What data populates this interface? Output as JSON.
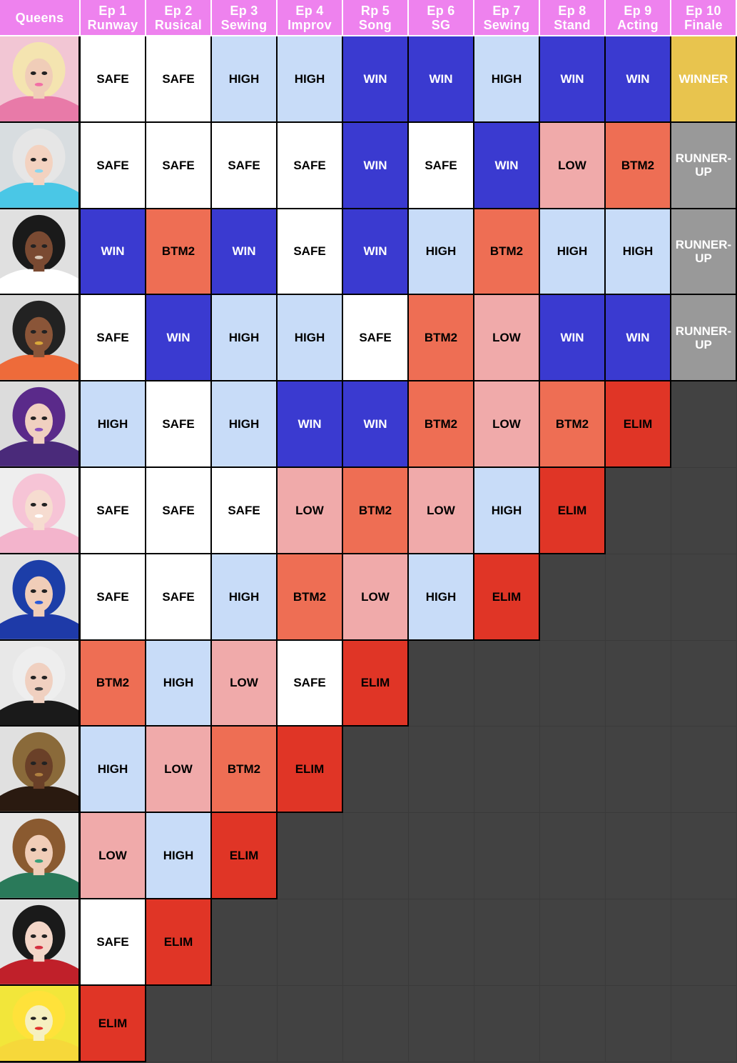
{
  "header": {
    "queens_label": "Queens",
    "episodes": [
      {
        "num": "Ep 1",
        "name": "Runway"
      },
      {
        "num": "Ep 2",
        "name": "Rusical"
      },
      {
        "num": "Ep 3",
        "name": "Sewing"
      },
      {
        "num": "Ep 4",
        "name": "Improv"
      },
      {
        "num": "Rp 5",
        "name": "Song"
      },
      {
        "num": "Ep 6",
        "name": "SG"
      },
      {
        "num": "Ep 7",
        "name": "Sewing"
      },
      {
        "num": "Ep 8",
        "name": "Stand"
      },
      {
        "num": "Ep 9",
        "name": "Acting"
      },
      {
        "num": "Ep 10",
        "name": "Finale"
      }
    ]
  },
  "colors": {
    "header": "#ee82ee",
    "WIN": "#3a3ad0",
    "SAFE": "#ffffff",
    "HIGH": "#c8dcf8",
    "LOW": "#f0aaaa",
    "BTM2": "#ee6e54",
    "ELIM": "#e03526",
    "WINNER": "#e8c44e",
    "RUNNER-UP": "#999999",
    "background": "#424242"
  },
  "rows": [
    {
      "portrait": {
        "bg": "#f2c6d4",
        "hair": "#f4e4b0",
        "skin": "#f0cdb8",
        "outfit": "#e87aa8",
        "accent": "#f26fa6"
      },
      "results": [
        "SAFE",
        "SAFE",
        "HIGH",
        "HIGH",
        "WIN",
        "WIN",
        "HIGH",
        "WIN",
        "WIN",
        "WINNER"
      ]
    },
    {
      "portrait": {
        "bg": "#d8dde0",
        "hair": "#e6e6e6",
        "skin": "#f3d2c0",
        "outfit": "#4ac7e6",
        "accent": "#8ad7ee"
      },
      "results": [
        "SAFE",
        "SAFE",
        "SAFE",
        "SAFE",
        "WIN",
        "SAFE",
        "WIN",
        "LOW",
        "BTM2",
        "RUNNER-UP"
      ]
    },
    {
      "portrait": {
        "bg": "#e0e0e0",
        "hair": "#1a1a1a",
        "skin": "#7a4a32",
        "outfit": "#ffffff",
        "accent": "#d8c8b8"
      },
      "results": [
        "WIN",
        "BTM2",
        "WIN",
        "SAFE",
        "WIN",
        "HIGH",
        "BTM2",
        "HIGH",
        "HIGH",
        "RUNNER-UP"
      ]
    },
    {
      "portrait": {
        "bg": "#d9d9d9",
        "hair": "#222222",
        "skin": "#8a5538",
        "outfit": "#ee6b3a",
        "accent": "#d9a83a"
      },
      "results": [
        "SAFE",
        "WIN",
        "HIGH",
        "HIGH",
        "SAFE",
        "BTM2",
        "LOW",
        "WIN",
        "WIN",
        "RUNNER-UP"
      ]
    },
    {
      "portrait": {
        "bg": "#dcdcdc",
        "hair": "#5a2a8a",
        "skin": "#f0d0c0",
        "outfit": "#4a2a7a",
        "accent": "#8a50c0"
      },
      "results": [
        "HIGH",
        "SAFE",
        "HIGH",
        "WIN",
        "WIN",
        "BTM2",
        "LOW",
        "BTM2",
        "ELIM",
        ""
      ]
    },
    {
      "portrait": {
        "bg": "#eeeeee",
        "hair": "#f6c4d6",
        "skin": "#f6dcd0",
        "outfit": "#f3b4cc",
        "accent": "#ffffff"
      },
      "results": [
        "SAFE",
        "SAFE",
        "SAFE",
        "LOW",
        "BTM2",
        "LOW",
        "HIGH",
        "ELIM",
        "",
        ""
      ]
    },
    {
      "portrait": {
        "bg": "#e2e2e2",
        "hair": "#1c3ea8",
        "skin": "#f0cdb8",
        "outfit": "#1e3aa8",
        "accent": "#2a5ad8"
      },
      "results": [
        "SAFE",
        "SAFE",
        "HIGH",
        "BTM2",
        "LOW",
        "HIGH",
        "ELIM",
        "",
        "",
        ""
      ]
    },
    {
      "portrait": {
        "bg": "#e8e8e8",
        "hair": "#eeeeee",
        "skin": "#f0d0c0",
        "outfit": "#1a1a1a",
        "accent": "#444444"
      },
      "results": [
        "BTM2",
        "HIGH",
        "LOW",
        "SAFE",
        "ELIM",
        "",
        "",
        "",
        "",
        ""
      ]
    },
    {
      "portrait": {
        "bg": "#e0e0e0",
        "hair": "#8a6a3a",
        "skin": "#6a4028",
        "outfit": "#2a1a10",
        "accent": "#b08040"
      },
      "results": [
        "HIGH",
        "LOW",
        "BTM2",
        "ELIM",
        "",
        "",
        "",
        "",
        "",
        ""
      ]
    },
    {
      "portrait": {
        "bg": "#e6e6e6",
        "hair": "#8a5a30",
        "skin": "#f0cdb8",
        "outfit": "#2a7a5a",
        "accent": "#3aa07a"
      },
      "results": [
        "LOW",
        "HIGH",
        "ELIM",
        "",
        "",
        "",
        "",
        "",
        "",
        ""
      ]
    },
    {
      "portrait": {
        "bg": "#e4e4e4",
        "hair": "#1a1a1a",
        "skin": "#f3d6c8",
        "outfit": "#c0202a",
        "accent": "#d43040"
      },
      "results": [
        "SAFE",
        "ELIM",
        "",
        "",
        "",
        "",
        "",
        "",
        "",
        ""
      ]
    },
    {
      "portrait": {
        "bg": "#f2e63a",
        "hair": "#ffe23a",
        "skin": "#f6f0c0",
        "outfit": "#f6d83a",
        "accent": "#e0302a"
      },
      "results": [
        "ELIM",
        "",
        "",
        "",
        "",
        "",
        "",
        "",
        "",
        ""
      ]
    }
  ]
}
